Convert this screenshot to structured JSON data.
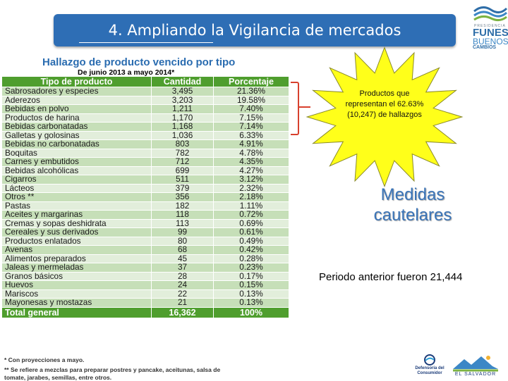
{
  "header": {
    "title": "4. Ampliando  la  Vigilancia de mercados",
    "logo": {
      "small_text": "PRESIDENCIA",
      "line1": "FUNES",
      "line2": "BUENOS",
      "line3": "CAMBIOS"
    }
  },
  "table": {
    "title": "Hallazgo de producto vencido por tipo",
    "subtitle": "De junio 2013 a mayo 2014*",
    "columns": [
      "Tipo de producto",
      "Cantidad",
      "Porcentaje"
    ],
    "rows": [
      [
        "Sabrosadores y especies",
        "3,495",
        "21.36%"
      ],
      [
        "Aderezos",
        "3,203",
        "19.58%"
      ],
      [
        "Bebidas en polvo",
        "1,211",
        "7.40%"
      ],
      [
        "Productos de harina",
        "1,170",
        "7.15%"
      ],
      [
        "Bebidas carbonatadas",
        "1,168",
        "7.14%"
      ],
      [
        "Galletas y golosinas",
        "1,036",
        "6.33%"
      ],
      [
        "Bebidas no carbonatadas",
        "803",
        "4.91%"
      ],
      [
        "Boquitas",
        "782",
        "4.78%"
      ],
      [
        "Carnes y embutidos",
        "712",
        "4.35%"
      ],
      [
        "Bebidas alcohólicas",
        "699",
        "4.27%"
      ],
      [
        "Cigarros",
        "511",
        "3.12%"
      ],
      [
        "Lácteos",
        "379",
        "2.32%"
      ],
      [
        "Otros **",
        "356",
        "2.18%"
      ],
      [
        "Pastas",
        "182",
        "1.11%"
      ],
      [
        "Aceites y margarinas",
        "118",
        "0.72%"
      ],
      [
        "Cremas y sopas deshidrata",
        "113",
        "0.69%"
      ],
      [
        "Cereales y sus derivados",
        "99",
        "0.61%"
      ],
      [
        "Productos enlatados",
        "80",
        "0.49%"
      ],
      [
        "Avenas",
        "68",
        "0.42%"
      ],
      [
        "Alimentos preparados",
        "45",
        "0.28%"
      ],
      [
        "Jaleas y mermeladas",
        "37",
        "0.23%"
      ],
      [
        "Granos básicos",
        "28",
        "0.17%"
      ],
      [
        "Huevos",
        "24",
        "0.15%"
      ],
      [
        "Mariscos",
        "22",
        "0.13%"
      ],
      [
        "Mayonesas y mostazas",
        "21",
        "0.13%"
      ]
    ],
    "total": [
      "Total general",
      "16,362",
      "100%"
    ],
    "footnotes": [
      "* Con proyecciones a mayo.",
      "** Se refiere a mezclas para preparar postres y pancake, aceitunas, salsa de",
      "tomate, jarabes, semillas, entre otros."
    ]
  },
  "callout": {
    "text": "Productos que representan el 62.63%  (10,247) de hallazgos",
    "star_color": "#ffff1a",
    "bracket_color": "#d8402d"
  },
  "medidas": "Medidas cautelares",
  "periodo": "Periodo anterior fueron 21,444",
  "logos": {
    "defensoria": "Defensoría del Consumidor",
    "el_salvador": "EL SALVADOR"
  }
}
